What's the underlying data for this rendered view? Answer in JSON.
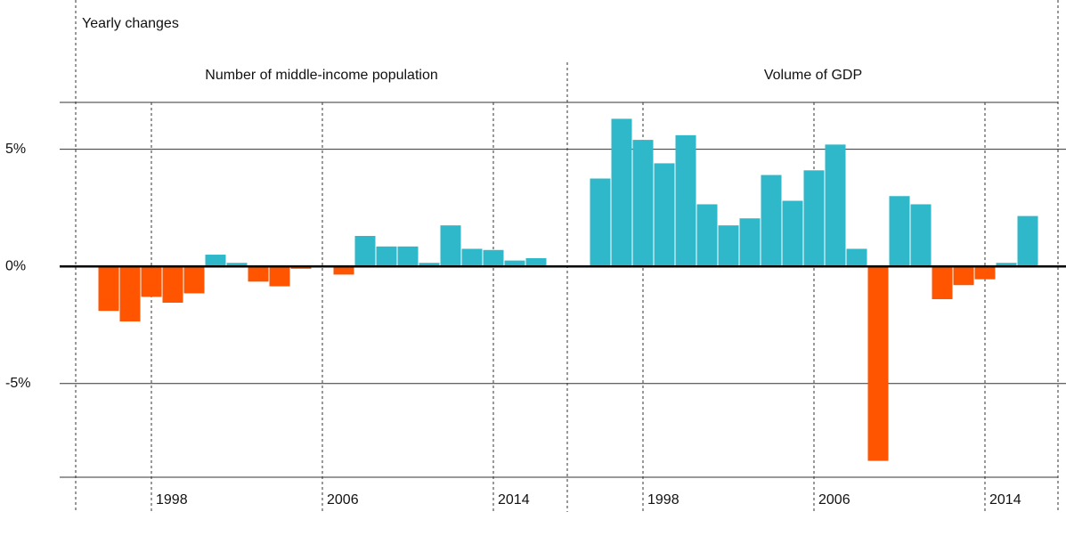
{
  "chart_data": [
    {
      "type": "bar",
      "title": "Number of middle-income population",
      "ylabel": "Yearly changes",
      "categories": [
        null,
        null,
        "1998",
        null,
        null,
        null,
        null,
        null,
        null,
        null,
        "2006",
        null,
        null,
        null,
        null,
        null,
        null,
        null,
        "2014",
        null,
        null
      ],
      "values": [
        -1.9,
        -2.35,
        -1.3,
        -1.55,
        -1.15,
        0.5,
        0.15,
        -0.65,
        -0.85,
        -0.1,
        0,
        -0.35,
        1.3,
        0.85,
        0.85,
        0.15,
        1.75,
        0.75,
        0.7,
        0.25,
        0.35
      ],
      "positive_color": "#2fb8c9",
      "negative_color": "#ff5500",
      "ylim": [
        -9,
        7
      ],
      "yticks": [
        {
          "value": 5,
          "label": "5%"
        },
        {
          "value": 0,
          "label": "0%"
        },
        {
          "value": -5,
          "label": "-5%"
        }
      ],
      "grid": true
    },
    {
      "type": "bar",
      "title": "Volume of GDP",
      "categories": [
        null,
        null,
        "1998",
        null,
        null,
        null,
        null,
        null,
        null,
        null,
        "2006",
        null,
        null,
        null,
        null,
        null,
        null,
        null,
        "2014",
        null,
        null
      ],
      "values": [
        3.75,
        6.3,
        5.4,
        4.4,
        5.6,
        2.65,
        1.75,
        2.05,
        3.9,
        2.8,
        4.1,
        5.2,
        0.75,
        -8.3,
        3.0,
        2.65,
        -1.4,
        -0.8,
        -0.55,
        0.15,
        2.15
      ],
      "positive_color": "#2fb8c9",
      "negative_color": "#ff5500",
      "ylim": [
        -9,
        7
      ]
    }
  ]
}
